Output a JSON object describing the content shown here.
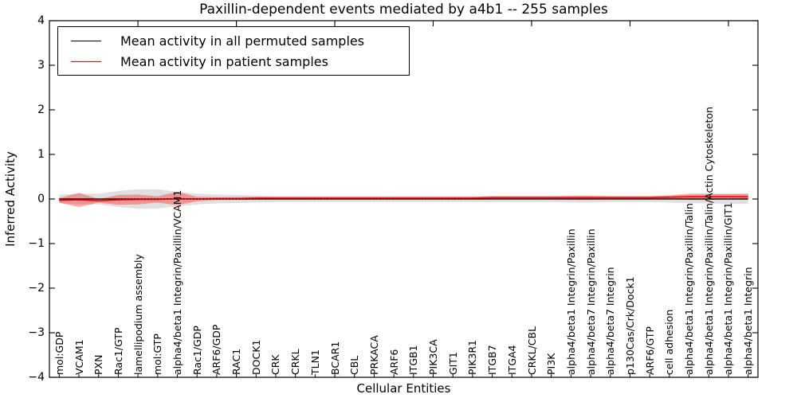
{
  "chart_data": {
    "type": "line",
    "title": "Paxillin-dependent events mediated by a4b1 -- 255 samples",
    "xlabel": "Cellular Entities",
    "ylabel": "Inferred Activity",
    "ylim": [
      -4,
      4
    ],
    "grid": false,
    "legend_position": "upper left",
    "y_tick_labels": [
      "4",
      "3",
      "2",
      "1",
      "0",
      "−1",
      "−2",
      "−3",
      "−4"
    ],
    "y_tick_values": [
      4,
      3,
      2,
      1,
      0,
      -1,
      -2,
      -3,
      -4
    ],
    "categories": [
      "mol:GDP",
      "VCAM1",
      "PXN",
      "Rac1/GTP",
      "lamellipodium assembly",
      "mol:GTP",
      "alpha4/beta1 Integrin/Paxillin/VCAM1",
      "Rac1/GDP",
      "ARF6/GDP",
      "RAC1",
      "DOCK1",
      "CRK",
      "CRKL",
      "TLN1",
      "BCAR1",
      "CBL",
      "PRKACA",
      "ARF6",
      "ITGB1",
      "PIK3CA",
      "GIT1",
      "PIK3R1",
      "ITGB7",
      "ITGA4",
      "CRKL/CBL",
      "PI3K",
      "alpha4/beta1 Integrin/Paxillin",
      "alpha4/beta7 Integrin/Paxillin",
      "alpha4/beta7 Integrin",
      "p130Cas/Crk/Dock1",
      "ARF6/GTP",
      "cell adhesion",
      "alpha4/beta1 Integrin/Paxillin/Talin",
      "alpha4/beta1 Integrin/Paxillin/Talin/Actin Cytoskeleton",
      "alpha4/beta1 Integrin/Paxillin/GIT1",
      "alpha4/beta1 Integrin"
    ],
    "series": [
      {
        "name": "Mean activity in all permuted samples",
        "color": "#000000",
        "line_width": 1.2,
        "band_color": "#999999",
        "band_opacity": 0.3,
        "values": [
          0,
          0,
          0,
          0,
          0,
          0,
          0,
          0,
          0,
          0,
          0,
          0,
          0,
          0,
          0,
          0,
          0,
          0,
          0,
          0,
          0,
          0,
          0,
          0,
          0,
          0,
          0,
          0,
          0,
          0,
          0,
          0,
          0,
          0,
          0,
          0
        ],
        "band_halfwidth": [
          0.1,
          0.12,
          0.12,
          0.18,
          0.22,
          0.22,
          0.16,
          0.12,
          0.1,
          0.09,
          0.08,
          0.07,
          0.07,
          0.07,
          0.07,
          0.07,
          0.07,
          0.07,
          0.07,
          0.07,
          0.07,
          0.07,
          0.07,
          0.07,
          0.07,
          0.07,
          0.08,
          0.08,
          0.07,
          0.07,
          0.07,
          0.08,
          0.09,
          0.1,
          0.11,
          0.11
        ]
      },
      {
        "name": "Mean activity in patient samples",
        "color": "#ff0000",
        "line_width": 1.6,
        "band_color": "#ff0000",
        "band_opacity": 0.33,
        "values": [
          -0.03,
          -0.02,
          -0.04,
          -0.02,
          -0.01,
          -0.01,
          0.01,
          0.0,
          0.01,
          0.01,
          0.02,
          0.02,
          0.02,
          0.02,
          0.02,
          0.02,
          0.02,
          0.02,
          0.02,
          0.02,
          0.02,
          0.02,
          0.03,
          0.03,
          0.03,
          0.03,
          0.03,
          0.03,
          0.03,
          0.03,
          0.03,
          0.04,
          0.05,
          0.05,
          0.05,
          0.05
        ],
        "band_halfwidth": [
          0.05,
          0.16,
          0.04,
          0.11,
          0.11,
          0.07,
          0.15,
          0.05,
          0.03,
          0.03,
          0.03,
          0.03,
          0.03,
          0.03,
          0.03,
          0.03,
          0.03,
          0.03,
          0.03,
          0.03,
          0.03,
          0.03,
          0.03,
          0.03,
          0.03,
          0.03,
          0.04,
          0.04,
          0.03,
          0.03,
          0.03,
          0.04,
          0.07,
          0.07,
          0.06,
          0.07
        ]
      }
    ],
    "zero_line": {
      "value": 0,
      "style": "dotted",
      "color": "#000000"
    }
  }
}
